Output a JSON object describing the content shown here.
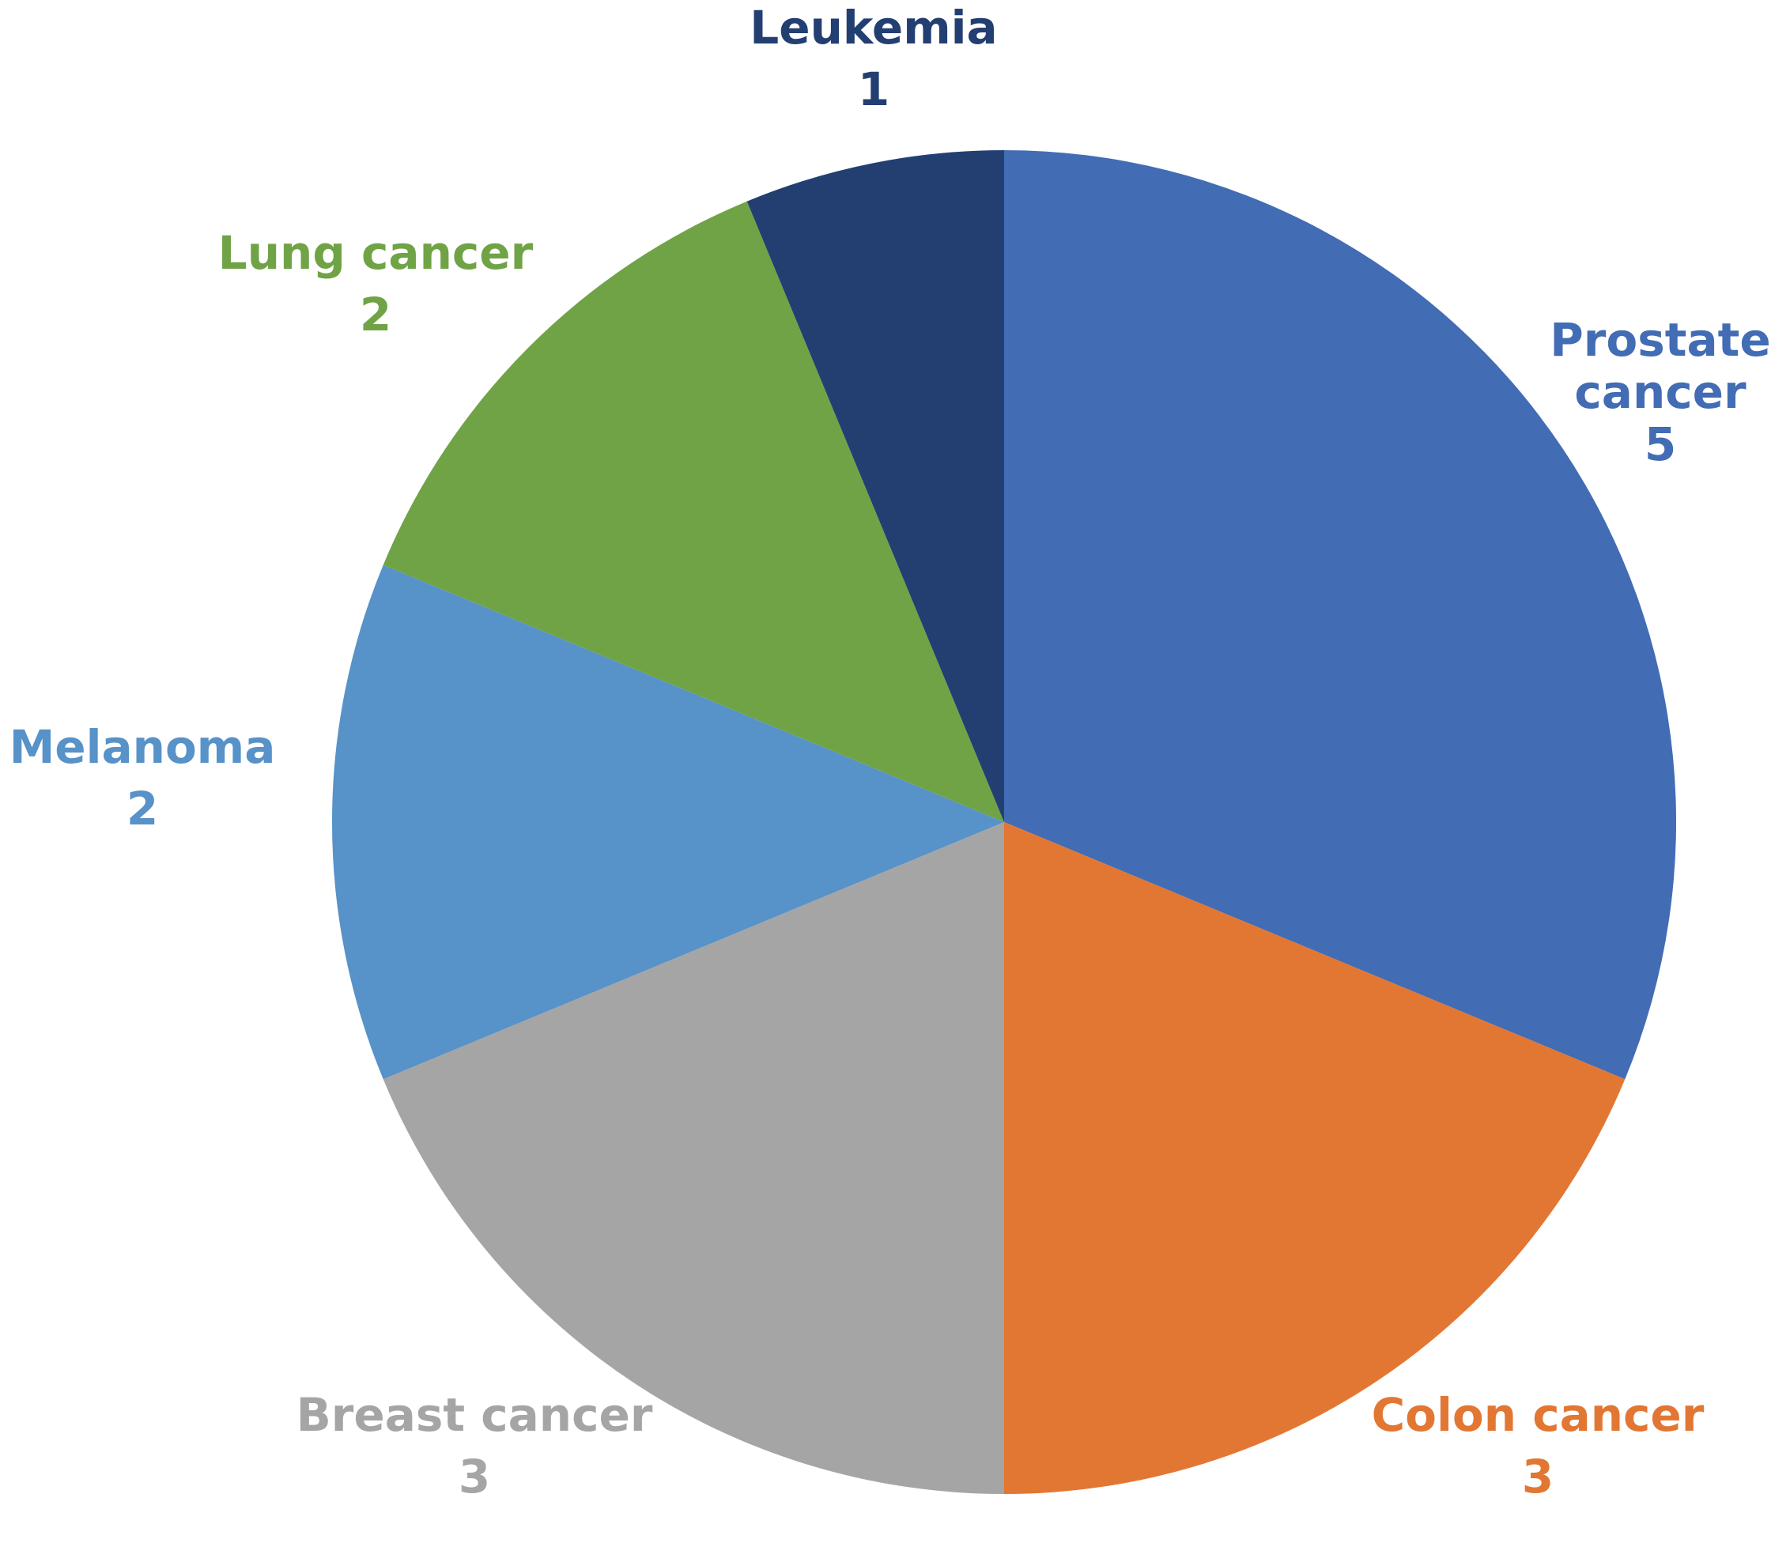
{
  "chart_data": {
    "type": "pie",
    "title": "",
    "start_angle_deg": 0,
    "direction": "clockwise",
    "slices": [
      {
        "label": [
          "Prostate",
          "cancer"
        ],
        "value": 5,
        "color": "#426cb4"
      },
      {
        "label": [
          "Colon cancer"
        ],
        "value": 3,
        "color": "#e27733"
      },
      {
        "label": [
          "Breast  cancer"
        ],
        "value": 3,
        "color": "#a5a5a5"
      },
      {
        "label": [
          "Melanoma"
        ],
        "value": 2,
        "color": "#5792c8"
      },
      {
        "label": [
          "Lung cancer"
        ],
        "value": 2,
        "color": "#70a346"
      },
      {
        "label": [
          "Leukemia"
        ],
        "value": 1,
        "color": "#233f72"
      }
    ],
    "legend": "none",
    "data_labels": "outside, category name and value"
  }
}
